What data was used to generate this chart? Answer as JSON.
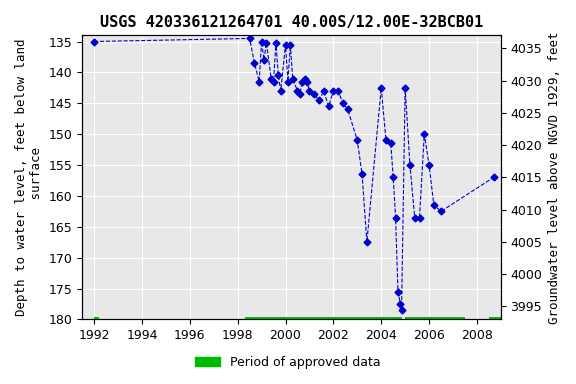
{
  "title": "USGS 420336121264701 40.00S/12.00E-32BCB01",
  "ylabel_left": "Depth to water level, feet below land\n surface",
  "ylabel_right": "Groundwater level above NGVD 1929, feet",
  "xlim": [
    1991.5,
    2009.0
  ],
  "ylim_left": [
    180,
    134
  ],
  "ylim_right": [
    3993,
    4037
  ],
  "xticks": [
    1992,
    1994,
    1996,
    1998,
    2000,
    2002,
    2004,
    2006,
    2008
  ],
  "yticks_left": [
    135,
    140,
    145,
    150,
    155,
    160,
    165,
    170,
    175,
    180
  ],
  "yticks_right": [
    4035,
    4030,
    4025,
    4020,
    4015,
    4010,
    4005,
    4000,
    3995
  ],
  "data_x": [
    1992.0,
    1998.5,
    1998.7,
    1998.9,
    1999.0,
    1999.1,
    1999.2,
    1999.4,
    1999.5,
    1999.6,
    1999.7,
    1999.8,
    2000.0,
    2000.1,
    2000.2,
    2000.3,
    2000.5,
    2000.6,
    2000.7,
    2000.8,
    2000.9,
    2001.0,
    2001.2,
    2001.4,
    2001.6,
    2001.8,
    2002.0,
    2002.2,
    2002.4,
    2002.6,
    2003.0,
    2003.2,
    2003.4,
    2004.0,
    2004.2,
    2004.4,
    2004.5,
    2004.6,
    2004.7,
    2004.8,
    2004.85,
    2005.0,
    2005.2,
    2005.4,
    2005.6,
    2005.8,
    2006.0,
    2006.2,
    2006.5,
    2008.7
  ],
  "data_y": [
    135.0,
    134.5,
    138.5,
    141.5,
    135.0,
    138.0,
    135.2,
    141.0,
    141.5,
    135.2,
    140.5,
    143.0,
    135.5,
    141.5,
    135.5,
    141.0,
    143.0,
    143.5,
    141.5,
    141.0,
    141.5,
    143.0,
    143.5,
    144.5,
    143.0,
    145.5,
    143.0,
    143.0,
    145.0,
    146.0,
    151.0,
    156.5,
    167.5,
    142.5,
    151.0,
    151.5,
    157.0,
    163.5,
    175.5,
    177.5,
    178.5,
    142.5,
    155.0,
    163.5,
    163.5,
    150.0,
    155.0,
    161.5,
    162.5,
    157.0
  ],
  "approved_segments": [
    [
      1992.0,
      1992.2
    ],
    [
      1998.3,
      2004.85
    ],
    [
      2005.0,
      2007.5
    ],
    [
      2008.5,
      2009.0
    ]
  ],
  "line_color": "#0000CC",
  "marker_color": "#0000CC",
  "approved_color": "#00BB00",
  "bg_color": "#ffffff",
  "plot_bg_color": "#e8e8e8",
  "grid_color": "#ffffff",
  "title_fontsize": 11,
  "label_fontsize": 9,
  "tick_fontsize": 9
}
